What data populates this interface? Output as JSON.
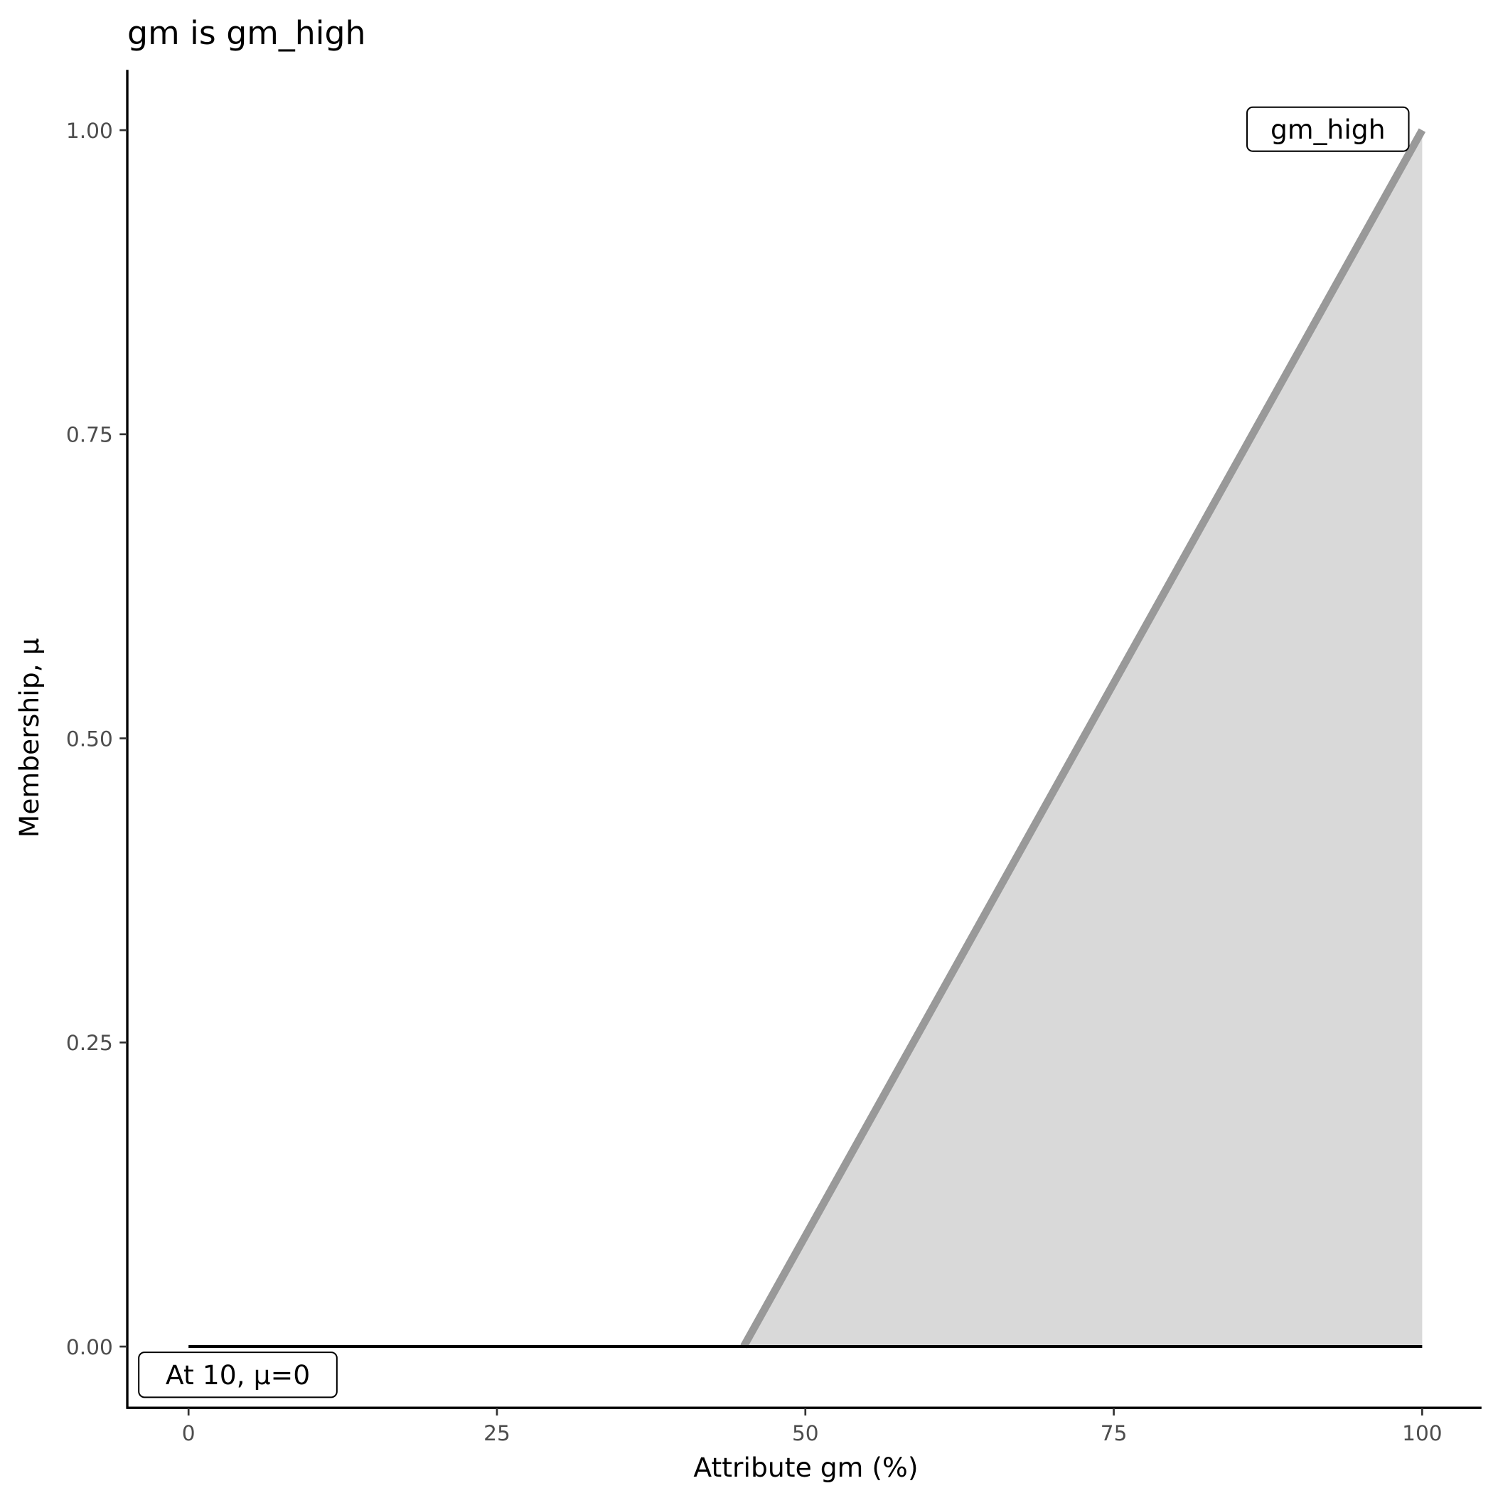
{
  "chart_data": {
    "type": "area",
    "title": "gm is gm_high",
    "xlabel": "Attribute gm (%)",
    "ylabel": "Membership, μ",
    "xlim": [
      -5,
      105
    ],
    "ylim": [
      -0.05,
      1.05
    ],
    "x_ticks": [
      0,
      25,
      50,
      75,
      100
    ],
    "x_tick_labels": [
      "0",
      "25",
      "50",
      "75",
      "100"
    ],
    "y_ticks": [
      0,
      0.25,
      0.5,
      0.75,
      1
    ],
    "y_tick_labels": [
      "0.00",
      "0.25",
      "0.50",
      "0.75",
      "1.00"
    ],
    "grid": false,
    "series": [
      {
        "name": "gm_high",
        "x": [
          0,
          45,
          100
        ],
        "y": [
          0,
          0,
          1
        ],
        "line_color": "#999999",
        "fill_color": "#d9d9d9"
      }
    ],
    "baseline": {
      "x": [
        0,
        100
      ],
      "y": [
        0,
        0
      ],
      "color": "#000000"
    },
    "annotations": [
      {
        "text": "gm_high",
        "x": 100,
        "y": 1,
        "align": "right"
      },
      {
        "text": "At 10, μ=0",
        "x": -5,
        "y": -0.05,
        "align": "left"
      }
    ]
  }
}
